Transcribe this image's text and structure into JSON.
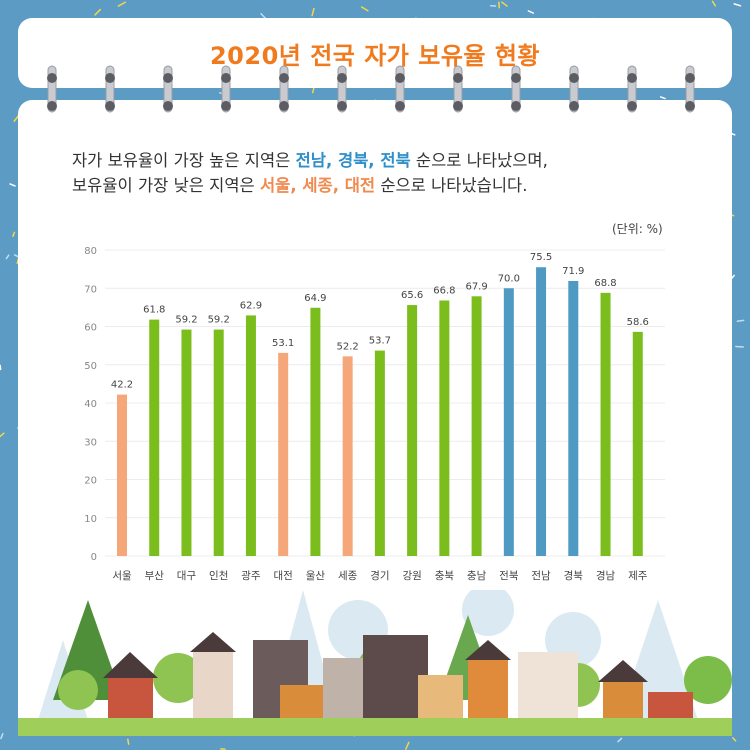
{
  "title": "2020년 전국 자가 보유율 현황",
  "description": {
    "line1_prefix": "자가 보유율이 가장 높은 지역은 ",
    "line1_highlight": "전남, 경북, 전북",
    "line1_suffix": " 순으로 나타났으며,",
    "line2_prefix": "보유율이 가장 낮은 지역은 ",
    "line2_highlight": "서울, 세종, 대전",
    "line2_suffix": " 순으로 나타났습니다."
  },
  "colors": {
    "background": "#5b9bc4",
    "title": "#f07a1e",
    "bar_high": "#4f9ac2",
    "bar_low": "#f5a77a",
    "bar_default": "#7cbd1e"
  },
  "chart_data": {
    "type": "bar",
    "unit_label": "(단위: %)",
    "categories": [
      "서울",
      "부산",
      "대구",
      "인천",
      "광주",
      "대전",
      "울산",
      "세종",
      "경기",
      "강원",
      "충북",
      "충남",
      "전북",
      "전남",
      "경북",
      "경남",
      "제주"
    ],
    "values": [
      42.2,
      61.8,
      59.2,
      59.2,
      62.9,
      53.1,
      64.9,
      52.2,
      53.7,
      65.6,
      66.8,
      67.9,
      70.0,
      75.5,
      71.9,
      68.8,
      58.6
    ],
    "value_labels": [
      "42.2",
      "61.8",
      "59.2",
      "59.2",
      "62.9",
      "53.1",
      "64.9",
      "52.2",
      "53.7",
      "65.6",
      "66.8",
      "67.9",
      "70.0",
      "75.5",
      "71.9",
      "68.8",
      "58.6"
    ],
    "bar_groups": [
      "low",
      "default",
      "default",
      "default",
      "default",
      "low",
      "default",
      "low",
      "default",
      "default",
      "default",
      "default",
      "high",
      "high",
      "high",
      "default",
      "default"
    ],
    "yticks": [
      "0",
      "10",
      "20",
      "30",
      "40",
      "50",
      "60",
      "70",
      "80"
    ],
    "ylim": [
      0,
      80
    ],
    "grid": true,
    "legend": "none"
  }
}
